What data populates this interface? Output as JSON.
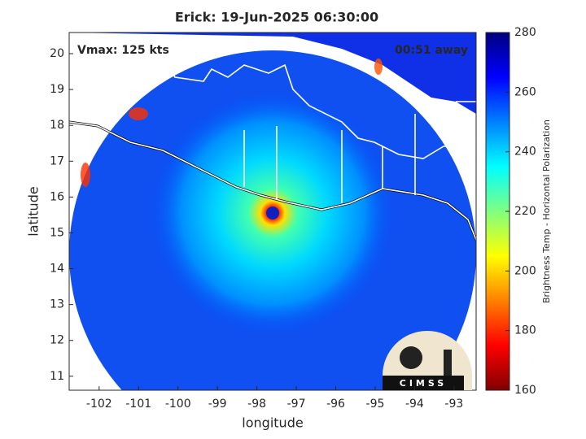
{
  "chart_data": {
    "type": "image",
    "title": "Erick: 19-Jun-2025 06:30:00",
    "annotations": [
      "Vmax: 125 kts",
      "00:51 away"
    ],
    "xlabel": "longitude",
    "ylabel": "latitude",
    "xlim": [
      -102.76,
      -92.44
    ],
    "ylim": [
      10.61,
      20.59
    ],
    "xticks": [
      -102,
      -101,
      -100,
      -99,
      -98,
      -97,
      -96,
      -95,
      -94,
      -93
    ],
    "yticks": [
      11,
      12,
      13,
      14,
      15,
      16,
      17,
      18,
      19,
      20
    ],
    "colorbar": {
      "label": "Brightness Temp - Horizontal Polarization",
      "clim": [
        160,
        280
      ],
      "ticks": [
        160,
        180,
        200,
        220,
        240,
        260,
        280
      ],
      "colormap": [
        "#800000",
        "#ff0000",
        "#ff8000",
        "#ffff00",
        "#80ff80",
        "#00ffff",
        "#0080ff",
        "#0000ff",
        "#000080"
      ]
    },
    "logo": "CIMSS"
  }
}
